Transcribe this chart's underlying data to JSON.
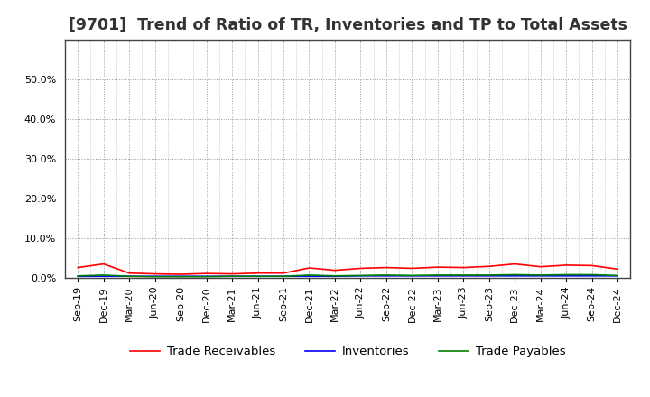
{
  "title": "[9701]  Trend of Ratio of TR, Inventories and TP to Total Assets",
  "x_labels": [
    "Sep-19",
    "Dec-19",
    "Mar-20",
    "Jun-20",
    "Sep-20",
    "Dec-20",
    "Mar-21",
    "Jun-21",
    "Sep-21",
    "Dec-21",
    "Mar-22",
    "Jun-22",
    "Sep-22",
    "Dec-22",
    "Mar-23",
    "Jun-23",
    "Sep-23",
    "Dec-23",
    "Mar-24",
    "Jun-24",
    "Sep-24",
    "Dec-24"
  ],
  "trade_receivables": [
    0.026,
    0.035,
    0.012,
    0.01,
    0.009,
    0.011,
    0.01,
    0.012,
    0.012,
    0.025,
    0.019,
    0.024,
    0.026,
    0.024,
    0.027,
    0.026,
    0.029,
    0.035,
    0.028,
    0.032,
    0.031,
    0.022
  ],
  "inventories": [
    0.004,
    0.004,
    0.004,
    0.004,
    0.004,
    0.004,
    0.004,
    0.004,
    0.004,
    0.004,
    0.004,
    0.005,
    0.005,
    0.005,
    0.005,
    0.005,
    0.005,
    0.005,
    0.005,
    0.005,
    0.005,
    0.005
  ],
  "trade_payables": [
    0.005,
    0.007,
    0.004,
    0.003,
    0.003,
    0.003,
    0.004,
    0.004,
    0.004,
    0.007,
    0.005,
    0.006,
    0.007,
    0.006,
    0.007,
    0.007,
    0.007,
    0.008,
    0.007,
    0.008,
    0.008,
    0.006
  ],
  "tr_color": "#FF0000",
  "inv_color": "#0000FF",
  "tp_color": "#008000",
  "ylim": [
    0.0,
    0.6
  ],
  "yticks": [
    0.0,
    0.1,
    0.2,
    0.3,
    0.4,
    0.5
  ],
  "background_color": "#FFFFFF",
  "plot_bg_color": "#FFFFFF",
  "grid_color": "#999999",
  "legend_labels": [
    "Trade Receivables",
    "Inventories",
    "Trade Payables"
  ],
  "title_fontsize": 12.5,
  "tick_fontsize": 8,
  "legend_fontsize": 9.5,
  "spine_color": "#444444"
}
